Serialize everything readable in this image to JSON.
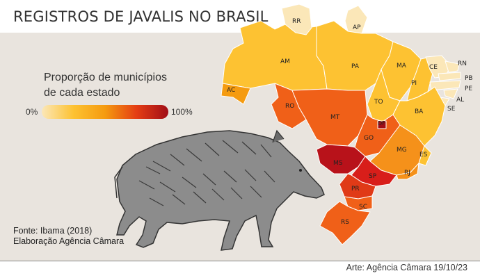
{
  "title": "REGISTROS DE JAVALIS NO BRASIL",
  "legend": {
    "title_line1": "Proporção de municípios",
    "title_line2": "de cada estado",
    "min_label": "0%",
    "max_label": "100%",
    "scale_colors": [
      "#fbe7b8",
      "#fdc232",
      "#f59b10",
      "#e43d14",
      "#a10d17"
    ]
  },
  "source": {
    "line1": "Fonte: Ibama (2018)",
    "line2": "Elaboração Agência Câmara"
  },
  "credit": "Arte: Agência Câmara 19/10/23",
  "states": [
    {
      "uf": "RR",
      "color": "#fbe7b8"
    },
    {
      "uf": "AP",
      "color": "#fbe7b8"
    },
    {
      "uf": "AM",
      "color": "#fdc232"
    },
    {
      "uf": "PA",
      "color": "#fdc232"
    },
    {
      "uf": "MA",
      "color": "#fdc232"
    },
    {
      "uf": "CE",
      "color": "#fbe7b8"
    },
    {
      "uf": "RN",
      "color": "#fbe7b8"
    },
    {
      "uf": "PB",
      "color": "#fbe7b8"
    },
    {
      "uf": "PE",
      "color": "#fbe7b8"
    },
    {
      "uf": "AL",
      "color": "#fbe7b8"
    },
    {
      "uf": "SE",
      "color": "#fbe7b8"
    },
    {
      "uf": "PI",
      "color": "#fdc232"
    },
    {
      "uf": "AC",
      "color": "#f59b10"
    },
    {
      "uf": "RO",
      "color": "#f06018"
    },
    {
      "uf": "MT",
      "color": "#f06018"
    },
    {
      "uf": "TO",
      "color": "#fdc232"
    },
    {
      "uf": "BA",
      "color": "#fdc232"
    },
    {
      "uf": "DF",
      "color": "#a10d17"
    },
    {
      "uf": "GO",
      "color": "#f06018"
    },
    {
      "uf": "MG",
      "color": "#f5911a"
    },
    {
      "uf": "ES",
      "color": "#fdc232"
    },
    {
      "uf": "RJ",
      "color": "#f5911a"
    },
    {
      "uf": "MS",
      "color": "#b8121a"
    },
    {
      "uf": "SP",
      "color": "#d81e1a"
    },
    {
      "uf": "PR",
      "color": "#e03a17"
    },
    {
      "uf": "SC",
      "color": "#f06018"
    },
    {
      "uf": "RS",
      "color": "#f06018"
    }
  ]
}
